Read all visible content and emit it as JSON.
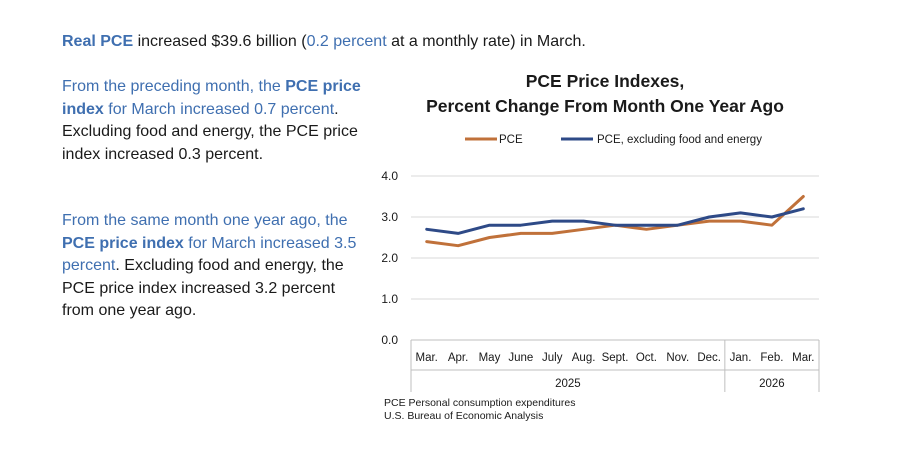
{
  "headline": {
    "part1": "Real PCE",
    "part2": " increased $39.6 billion (",
    "part3": "0.2 percent",
    "part4": " at a monthly rate) in March."
  },
  "paragraph1": {
    "part1": "From the preceding month, the ",
    "part2": "PCE price index",
    "part3": " for March increased 0.7 percent",
    "part4": ". Excluding food and energy, the PCE price index increased 0.3 percent."
  },
  "paragraph2": {
    "part1": "From the same month one year ago, the ",
    "part2": "PCE price index",
    "part3": " for March increased 3.5 percent",
    "part4": ". Excluding food and energy, the PCE price index increased 3.2 percent from one year ago."
  },
  "source": {
    "line1": "PCE Personal consumption expenditures",
    "line2": "U.S. Bureau of Economic Analysis"
  },
  "chart_data": {
    "type": "line",
    "title_line1": "PCE Price Indexes,",
    "title_line2": "Percent Change From Month One Year Ago",
    "categories": [
      "Mar.",
      "Apr.",
      "May",
      "June",
      "July",
      "Aug.",
      "Sept.",
      "Oct.",
      "Nov.",
      "Dec.",
      "Jan.",
      "Feb.",
      "Mar."
    ],
    "year_groups": [
      {
        "label": "2025",
        "count": 10
      },
      {
        "label": "2026",
        "count": 3
      }
    ],
    "ylim": [
      0,
      4
    ],
    "yticks": [
      "4.0",
      "3.0",
      "2.0",
      "1.0",
      "0.0"
    ],
    "grid": true,
    "legend_position": "top",
    "series": [
      {
        "name": "PCE",
        "color": "#c0713a",
        "values": [
          2.4,
          2.3,
          2.5,
          2.6,
          2.6,
          2.7,
          2.8,
          2.7,
          2.8,
          2.9,
          2.9,
          2.8,
          3.5
        ]
      },
      {
        "name": "PCE, excluding food and energy",
        "color": "#2e4a87",
        "values": [
          2.7,
          2.6,
          2.8,
          2.8,
          2.9,
          2.9,
          2.8,
          2.8,
          2.8,
          3.0,
          3.1,
          3.0,
          3.2
        ]
      }
    ]
  }
}
